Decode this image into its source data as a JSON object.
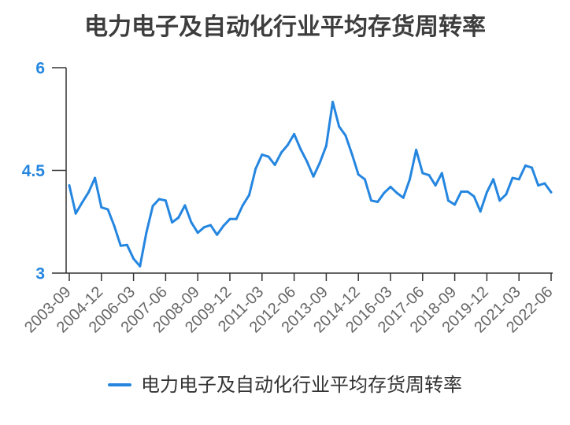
{
  "chart_data": {
    "type": "line",
    "title": "电力电子及自动化行业平均存货周转率",
    "x": [
      "2003-09",
      "2003-12",
      "2004-03",
      "2004-06",
      "2004-09",
      "2004-12",
      "2005-03",
      "2005-06",
      "2005-09",
      "2005-12",
      "2006-03",
      "2006-06",
      "2006-09",
      "2006-12",
      "2007-03",
      "2007-06",
      "2007-09",
      "2007-12",
      "2008-03",
      "2008-06",
      "2008-09",
      "2008-12",
      "2009-03",
      "2009-06",
      "2009-09",
      "2009-12",
      "2010-03",
      "2010-06",
      "2010-09",
      "2010-12",
      "2011-03",
      "2011-06",
      "2011-09",
      "2011-12",
      "2012-03",
      "2012-06",
      "2012-09",
      "2012-12",
      "2013-03",
      "2013-06",
      "2013-09",
      "2013-12",
      "2014-03",
      "2014-06",
      "2014-09",
      "2014-12",
      "2015-03",
      "2015-06",
      "2015-09",
      "2015-12",
      "2016-03",
      "2016-06",
      "2016-09",
      "2016-12",
      "2017-03",
      "2017-06",
      "2017-09",
      "2017-12",
      "2018-03",
      "2018-06",
      "2018-09",
      "2018-12",
      "2019-03",
      "2019-06",
      "2019-09",
      "2019-12",
      "2020-03",
      "2020-06",
      "2020-09",
      "2020-12",
      "2021-03",
      "2021-06",
      "2021-09",
      "2021-12",
      "2022-03",
      "2022-06"
    ],
    "series": [
      {
        "name": "电力电子及自动化行业平均存货周转率",
        "color": "#2586e0",
        "values": [
          4.28,
          3.87,
          4.03,
          4.18,
          4.39,
          3.96,
          3.93,
          3.69,
          3.4,
          3.41,
          3.21,
          3.1,
          3.59,
          3.98,
          4.08,
          4.06,
          3.74,
          3.81,
          3.99,
          3.74,
          3.59,
          3.67,
          3.7,
          3.56,
          3.69,
          3.79,
          3.79,
          3.99,
          4.14,
          4.52,
          4.73,
          4.7,
          4.58,
          4.76,
          4.87,
          5.03,
          4.81,
          4.63,
          4.41,
          4.61,
          4.86,
          5.5,
          5.14,
          5.01,
          4.74,
          4.44,
          4.37,
          4.06,
          4.04,
          4.17,
          4.26,
          4.17,
          4.1,
          4.37,
          4.8,
          4.46,
          4.43,
          4.28,
          4.46,
          4.06,
          4.0,
          4.19,
          4.19,
          4.12,
          3.9,
          4.18,
          4.37,
          4.06,
          4.15,
          4.39,
          4.37,
          4.57,
          4.54,
          4.28,
          4.31,
          4.18
        ]
      }
    ],
    "xticks": [
      "2003-09",
      "2004-12",
      "2006-03",
      "2007-06",
      "2008-09",
      "2009-12",
      "2011-03",
      "2012-06",
      "2013-09",
      "2014-12",
      "2016-03",
      "2017-06",
      "2018-09",
      "2019-12",
      "2021-03",
      "2022-06"
    ],
    "yticks": [
      3,
      4.5,
      6
    ],
    "ylim": [
      3,
      6
    ],
    "grid": false,
    "legend": "bottom",
    "colors": {
      "axis": "#333333",
      "y_tick_label": "#2586e0",
      "x_tick_label": "#666666",
      "title": "#3d3d3d"
    }
  }
}
